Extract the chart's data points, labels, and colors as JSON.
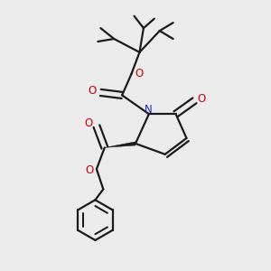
{
  "background_color": "#ebebeb",
  "bond_color": "#1a1a1a",
  "oxygen_color": "#cc0000",
  "nitrogen_color": "#2222cc",
  "line_width": 1.6,
  "figsize": [
    3.0,
    3.0
  ],
  "dpi": 100,
  "xlim": [
    0,
    10
  ],
  "ylim": [
    0,
    10
  ]
}
